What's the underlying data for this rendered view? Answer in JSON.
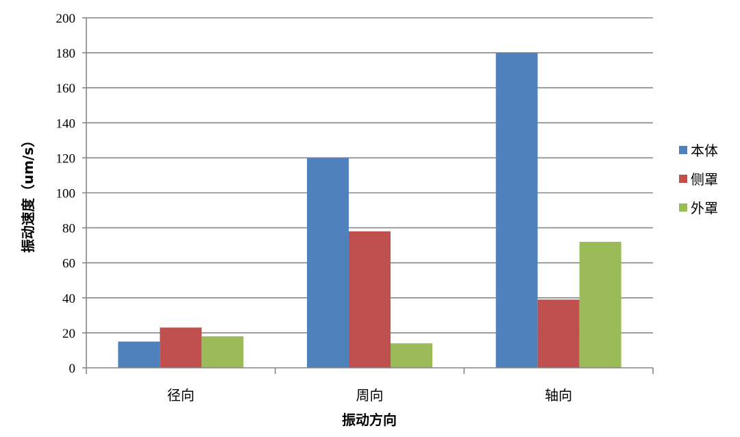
{
  "chart_data": {
    "type": "bar",
    "title": "",
    "xlabel": "振动方向",
    "ylabel": "振动速度（um/s）",
    "categories": [
      "径向",
      "周向",
      "轴向"
    ],
    "series": [
      {
        "name": "本体",
        "color": "#4F81BD",
        "values": [
          15,
          120,
          180
        ]
      },
      {
        "name": "侧罩",
        "color": "#C0504D",
        "values": [
          23,
          78,
          39
        ]
      },
      {
        "name": "外罩",
        "color": "#9BBB59",
        "values": [
          18,
          14,
          72
        ]
      }
    ],
    "ylim": [
      0,
      200
    ],
    "yticks": [
      0,
      20,
      40,
      60,
      80,
      100,
      120,
      140,
      160,
      180,
      200
    ],
    "grid": true,
    "legend_position": "right"
  }
}
